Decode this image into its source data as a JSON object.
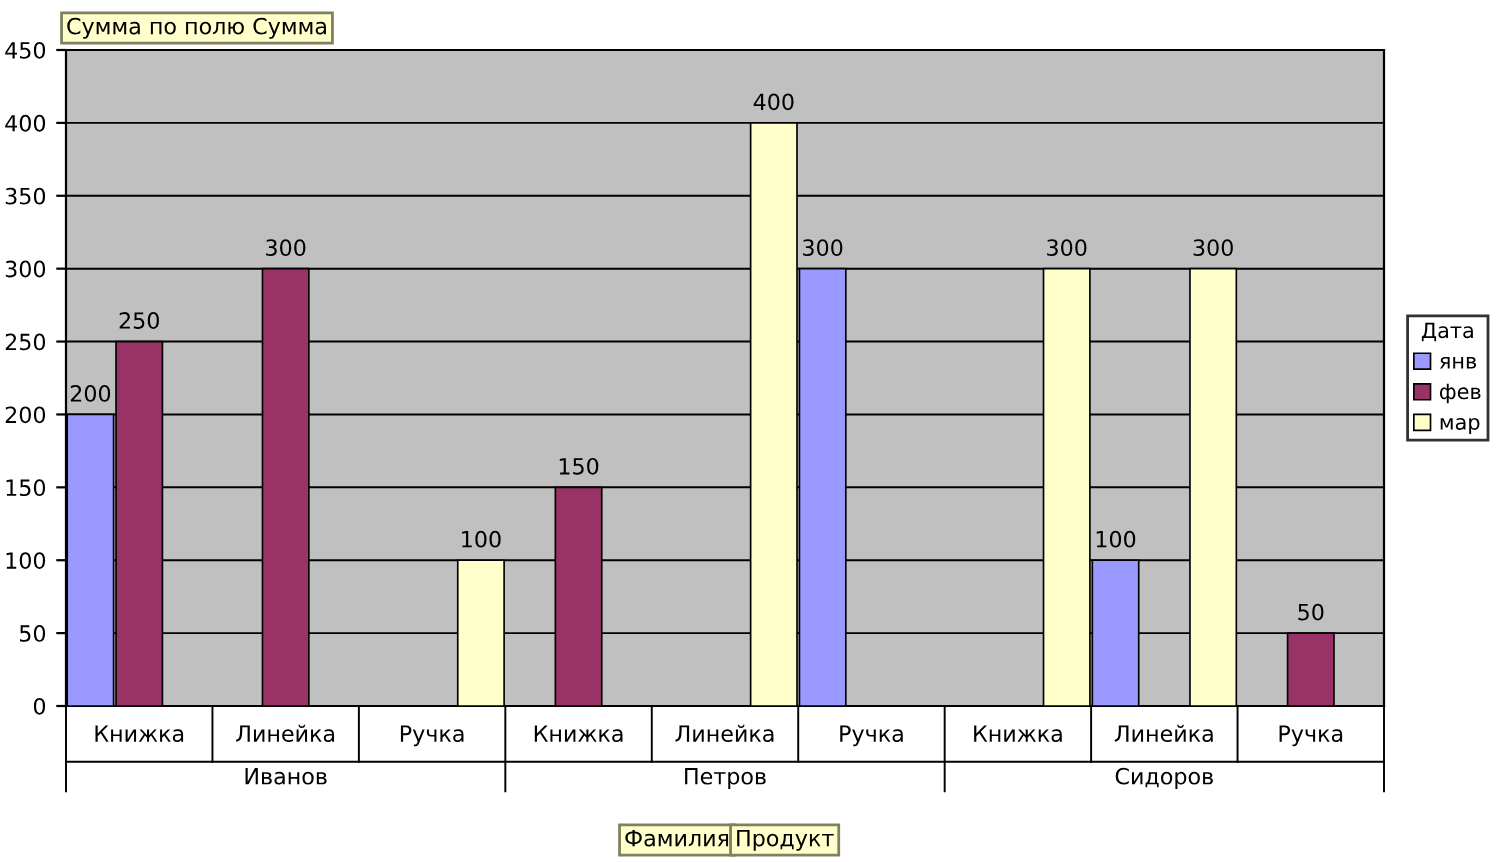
{
  "chart_data": {
    "type": "bar",
    "title": "Сумма по полю Сумма",
    "legend_title": "Дата",
    "categories": [
      "Книжка",
      "Линейка",
      "Ручка",
      "Книжка",
      "Линейка",
      "Ручка",
      "Книжка",
      "Линейка",
      "Ручка"
    ],
    "series": [
      {
        "name": "янв",
        "color": "#9999ff",
        "values": [
          200,
          null,
          null,
          null,
          null,
          300,
          null,
          100,
          null
        ]
      },
      {
        "name": "фев",
        "color": "#993366",
        "values": [
          250,
          300,
          null,
          150,
          null,
          null,
          null,
          null,
          50
        ]
      },
      {
        "name": "мар",
        "color": "#ffffcc",
        "values": [
          null,
          null,
          100,
          null,
          400,
          null,
          300,
          300,
          null
        ]
      }
    ],
    "annotations": [
      "Иванов",
      "Петров",
      "Сидоров",
      "Фамилия",
      "Продукт"
    ],
    "ylim": [
      0,
      450
    ],
    "yticks": [
      0,
      50,
      100,
      150,
      200,
      250,
      300,
      350,
      400,
      450
    ],
    "grid": "y",
    "legend": "right",
    "data_labels": true
  }
}
